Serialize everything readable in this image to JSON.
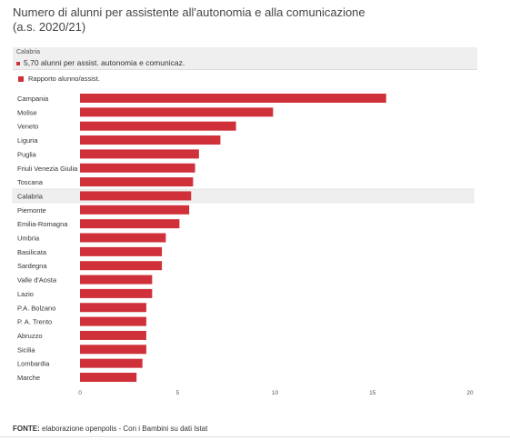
{
  "title_line1": "Numero di alunni per assistente all'autonomia e alla comunicazione",
  "title_line2": "(a.s. 2020/21)",
  "tooltip": {
    "region": "Calabria",
    "value_text": "5,70 alunni per assist. autonomia e comunicaz."
  },
  "source": {
    "label": "FONTE:",
    "text": " elaborazione openpolis - Con i Bambini su dati Istat"
  },
  "colors": {
    "bar": "#d0303a",
    "highlight": "#efefef"
  },
  "chart_data": {
    "type": "bar",
    "orientation": "horizontal",
    "title": "Numero di alunni per assistente all'autonomia e alla comunicazione (a.s. 2020/21)",
    "legend": [
      "Rapporto alunno/assist."
    ],
    "legend_position": "top-left",
    "highlighted_category": "Calabria",
    "categories": [
      "Campania",
      "Molise",
      "Veneto",
      "Liguria",
      "Puglia",
      "Friuli Venezia Giulia",
      "Toscana",
      "Calabria",
      "Piemonte",
      "Emilia-Romagna",
      "Umbria",
      "Basilicata",
      "Sardegna",
      "Valle d'Aosta",
      "Lazio",
      "P.A. Bolzano",
      "P. A. Trento",
      "Abruzzo",
      "Sicilia",
      "Lombardia",
      "Marche"
    ],
    "series": [
      {
        "name": "Rapporto alunno/assist.",
        "values": [
          15.7,
          9.9,
          8.0,
          7.2,
          6.1,
          5.9,
          5.8,
          5.7,
          5.6,
          5.1,
          4.4,
          4.2,
          4.2,
          3.7,
          3.7,
          3.4,
          3.4,
          3.4,
          3.4,
          3.2,
          2.9
        ]
      }
    ],
    "xlim": [
      0,
      20
    ],
    "xticks": [
      0,
      5,
      10,
      15,
      20
    ],
    "grid": false
  }
}
